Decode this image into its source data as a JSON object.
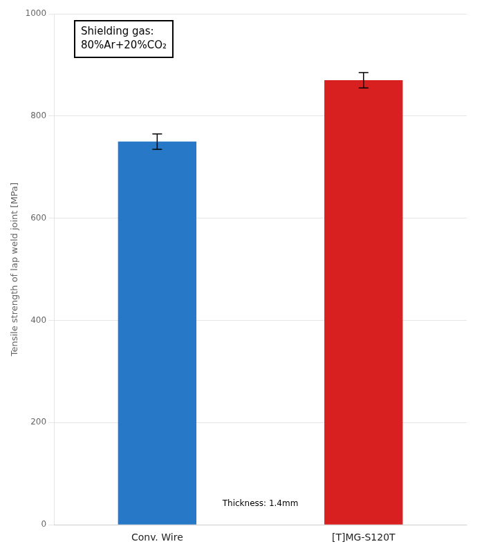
{
  "chart_data": {
    "type": "bar",
    "categories": [
      "Conv. Wire",
      "[T]MG-S120T"
    ],
    "values": [
      750,
      870
    ],
    "errors": [
      15,
      15
    ],
    "colors": [
      "#2878c8",
      "#d82020"
    ],
    "ylabel": "Tensile strength of lap weld joint [MPa]",
    "ylim": [
      0,
      1000
    ],
    "yticks": [
      0,
      200,
      400,
      600,
      800,
      1000
    ],
    "grid": true,
    "annotations": [
      "Shielding gas:\n80%Ar+20%CO₂",
      "Thickness: 1.4mm"
    ]
  }
}
